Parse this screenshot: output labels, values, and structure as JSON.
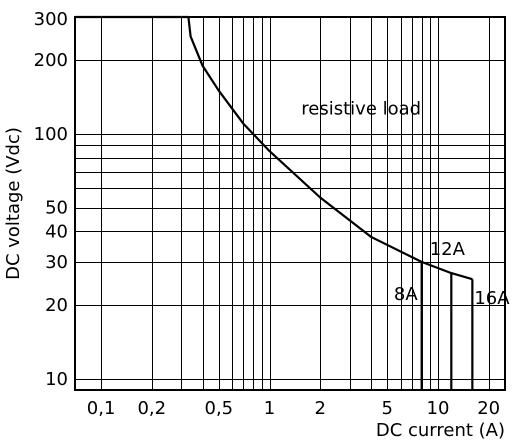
{
  "chart_data": {
    "type": "line",
    "title": "",
    "xlabel": "DC current (A)",
    "ylabel": "DC voltage (Vdc)",
    "x_scale": "log",
    "y_scale": "log",
    "xlim": [
      0.07,
      25
    ],
    "ylim": [
      9,
      300
    ],
    "grid": true,
    "x_ticks": [
      0.1,
      0.2,
      0.5,
      1,
      2,
      5,
      10,
      20
    ],
    "x_tick_labels": [
      "0,1",
      "0,2",
      "0,5",
      "1",
      "2",
      "5",
      "10",
      "20"
    ],
    "x_gridlines": [
      0.1,
      0.2,
      0.3,
      0.4,
      0.5,
      0.6,
      0.7,
      0.8,
      0.9,
      1,
      2,
      3,
      4,
      5,
      6,
      7,
      8,
      9,
      10,
      20
    ],
    "y_ticks": [
      10,
      20,
      30,
      40,
      50,
      100,
      200,
      300
    ],
    "y_tick_labels": [
      "10",
      "20",
      "30",
      "40",
      "50",
      "100",
      "200",
      "300"
    ],
    "y_gridlines": [
      10,
      20,
      30,
      40,
      50,
      60,
      70,
      80,
      90,
      100,
      200
    ],
    "series": [
      {
        "values": [
          {
            "x": 0.07,
            "y": 300
          },
          {
            "x": 0.33,
            "y": 300
          },
          {
            "x": 0.34,
            "y": 250
          },
          {
            "x": 0.4,
            "y": 190
          },
          {
            "x": 0.5,
            "y": 150
          },
          {
            "x": 0.7,
            "y": 110
          },
          {
            "x": 1,
            "y": 85
          },
          {
            "x": 2,
            "y": 55
          },
          {
            "x": 4,
            "y": 38
          },
          {
            "x": 8,
            "y": 30
          },
          {
            "x": 12,
            "y": 27
          },
          {
            "x": 16,
            "y": 25.5
          }
        ]
      }
    ],
    "rating_lines": [
      {
        "label": "8A",
        "x": 8,
        "y_top": 30
      },
      {
        "label": "12A",
        "x": 12,
        "y_top": 27
      },
      {
        "label": "16A",
        "x": 16,
        "y_top": 25.5
      }
    ],
    "annotations": [
      {
        "text": "resistive load",
        "x": 3.5,
        "y": 120
      }
    ]
  }
}
